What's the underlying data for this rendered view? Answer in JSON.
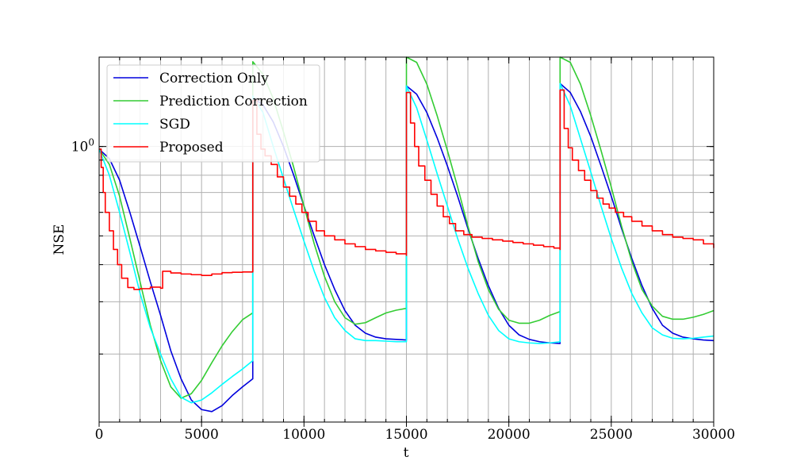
{
  "chart_data": {
    "type": "line",
    "title": "",
    "xlabel": "t",
    "ylabel": "NSE",
    "xlim": [
      0,
      30000
    ],
    "ylim": [
      0.118,
      2.0
    ],
    "yscale": "log",
    "grid": true,
    "legend_position": "top-left",
    "x_ticks": [
      0,
      5000,
      10000,
      15000,
      20000,
      25000,
      30000
    ],
    "x_tick_labels": [
      "0",
      "5000",
      "10000",
      "15000",
      "20000",
      "25000",
      "30000"
    ],
    "y_major_ticks": [
      1.0
    ],
    "y_major_tick_labels": [
      "10^0"
    ],
    "y_minor_ticks": [
      0.2,
      0.3,
      0.4,
      0.5,
      0.6,
      0.7,
      0.8,
      0.9
    ],
    "series": [
      {
        "name": "Correction Only",
        "color": "#0000dd",
        "x": [
          0,
          500,
          1000,
          1500,
          2000,
          2500,
          3000,
          3500,
          4000,
          4500,
          5000,
          5500,
          6000,
          6500,
          7000,
          7500,
          7501,
          8000,
          8500,
          9000,
          9500,
          10000,
          10500,
          11000,
          11500,
          12000,
          12500,
          13000,
          13500,
          14000,
          14500,
          15000,
          15001,
          15500,
          16000,
          16500,
          17000,
          17500,
          18000,
          18500,
          19000,
          19500,
          20000,
          20500,
          21000,
          21500,
          22000,
          22500,
          22501,
          23000,
          23500,
          24000,
          24500,
          25000,
          25500,
          26000,
          26500,
          27000,
          27500,
          28000,
          28500,
          29000,
          29500,
          30000
        ],
        "values": [
          0.98,
          0.91,
          0.77,
          0.6,
          0.46,
          0.35,
          0.27,
          0.205,
          0.165,
          0.14,
          0.13,
          0.128,
          0.134,
          0.145,
          0.155,
          0.165,
          1.46,
          1.38,
          1.21,
          1.0,
          0.8,
          0.63,
          0.5,
          0.4,
          0.33,
          0.28,
          0.25,
          0.235,
          0.228,
          0.225,
          0.224,
          0.223,
          1.6,
          1.5,
          1.3,
          1.07,
          0.86,
          0.68,
          0.53,
          0.42,
          0.34,
          0.285,
          0.25,
          0.232,
          0.224,
          0.22,
          0.218,
          0.217,
          1.63,
          1.52,
          1.31,
          1.08,
          0.86,
          0.68,
          0.53,
          0.42,
          0.34,
          0.285,
          0.25,
          0.235,
          0.228,
          0.225,
          0.223,
          0.222
        ]
      },
      {
        "name": "Prediction Correction",
        "color": "#33cc33",
        "x": [
          0,
          500,
          1000,
          1500,
          2000,
          2500,
          3000,
          3500,
          4000,
          4500,
          5000,
          5500,
          6000,
          6500,
          7000,
          7500,
          7501,
          8000,
          8500,
          9000,
          9500,
          10000,
          10500,
          11000,
          11500,
          12000,
          12500,
          13000,
          13500,
          14000,
          14500,
          15000,
          15001,
          15500,
          16000,
          16500,
          17000,
          17500,
          18000,
          18500,
          19000,
          19500,
          20000,
          20500,
          21000,
          21500,
          22000,
          22500,
          22501,
          23000,
          23500,
          24000,
          24500,
          25000,
          25500,
          26000,
          26500,
          27000,
          27500,
          28000,
          28500,
          29000,
          29500,
          30000
        ],
        "values": [
          0.98,
          0.87,
          0.68,
          0.49,
          0.35,
          0.25,
          0.19,
          0.155,
          0.142,
          0.147,
          0.163,
          0.187,
          0.213,
          0.238,
          0.261,
          0.275,
          1.93,
          1.75,
          1.45,
          1.12,
          0.85,
          0.63,
          0.47,
          0.365,
          0.3,
          0.265,
          0.252,
          0.255,
          0.265,
          0.275,
          0.281,
          0.285,
          2.0,
          1.92,
          1.62,
          1.27,
          0.97,
          0.73,
          0.54,
          0.41,
          0.33,
          0.283,
          0.26,
          0.254,
          0.254,
          0.26,
          0.27,
          0.278,
          2.0,
          1.92,
          1.62,
          1.27,
          0.97,
          0.73,
          0.54,
          0.41,
          0.33,
          0.29,
          0.268,
          0.262,
          0.262,
          0.266,
          0.272,
          0.28
        ]
      },
      {
        "name": "SGD",
        "color": "#00ffff",
        "x": [
          0,
          500,
          1000,
          1500,
          2000,
          2500,
          3000,
          3500,
          4000,
          4500,
          5000,
          5500,
          6000,
          6500,
          7000,
          7500,
          7501,
          8000,
          8500,
          9000,
          9500,
          10000,
          10500,
          11000,
          11500,
          12000,
          12500,
          13000,
          13500,
          14000,
          14500,
          15000,
          15001,
          15500,
          16000,
          16500,
          17000,
          17500,
          18000,
          18500,
          19000,
          19500,
          20000,
          20500,
          21000,
          21500,
          22000,
          22500,
          22501,
          23000,
          23500,
          24000,
          24500,
          25000,
          25500,
          26000,
          26500,
          27000,
          27500,
          28000,
          28500,
          29000,
          29500,
          30000
        ],
        "values": [
          0.98,
          0.8,
          0.6,
          0.44,
          0.32,
          0.245,
          0.2,
          0.165,
          0.143,
          0.137,
          0.14,
          0.148,
          0.158,
          0.168,
          0.178,
          0.19,
          1.48,
          1.3,
          1.0,
          0.78,
          0.61,
          0.48,
          0.38,
          0.31,
          0.265,
          0.24,
          0.225,
          0.222,
          0.222,
          0.221,
          0.22,
          0.22,
          1.6,
          1.35,
          1.05,
          0.81,
          0.63,
          0.49,
          0.39,
          0.32,
          0.27,
          0.24,
          0.225,
          0.22,
          0.218,
          0.217,
          0.218,
          0.22,
          1.63,
          1.37,
          1.06,
          0.82,
          0.63,
          0.49,
          0.39,
          0.32,
          0.275,
          0.245,
          0.232,
          0.226,
          0.225,
          0.226,
          0.228,
          0.23
        ]
      },
      {
        "name": "Proposed",
        "color": "#ff0000",
        "step": true,
        "x": [
          0,
          100,
          200,
          300,
          500,
          700,
          900,
          1100,
          1400,
          1700,
          2000,
          2500,
          3000,
          3100,
          3500,
          4000,
          4500,
          5000,
          5500,
          6000,
          6500,
          7000,
          7500,
          7501,
          7700,
          7900,
          8100,
          8400,
          8700,
          9000,
          9300,
          9600,
          9900,
          10200,
          10600,
          11000,
          11500,
          12000,
          12500,
          13000,
          13500,
          14000,
          14500,
          15000,
          15001,
          15200,
          15400,
          15600,
          15900,
          16200,
          16500,
          16800,
          17100,
          17400,
          17800,
          18200,
          18700,
          19200,
          19700,
          20200,
          20700,
          21200,
          21700,
          22200,
          22500,
          22501,
          22700,
          22900,
          23100,
          23400,
          23700,
          24000,
          24300,
          24600,
          24900,
          25200,
          25600,
          26000,
          26500,
          27000,
          27500,
          28000,
          28500,
          29000,
          29500,
          30000
        ],
        "values": [
          0.98,
          0.85,
          0.7,
          0.6,
          0.52,
          0.45,
          0.4,
          0.36,
          0.335,
          0.33,
          0.332,
          0.336,
          0.333,
          0.38,
          0.375,
          0.372,
          0.37,
          0.368,
          0.372,
          0.376,
          0.377,
          0.378,
          0.38,
          1.43,
          1.1,
          0.98,
          0.93,
          0.87,
          0.79,
          0.73,
          0.68,
          0.64,
          0.6,
          0.56,
          0.52,
          0.5,
          0.485,
          0.47,
          0.46,
          0.45,
          0.445,
          0.44,
          0.435,
          0.43,
          1.52,
          1.2,
          1.0,
          0.86,
          0.77,
          0.69,
          0.63,
          0.58,
          0.55,
          0.52,
          0.505,
          0.495,
          0.49,
          0.485,
          0.48,
          0.475,
          0.47,
          0.465,
          0.46,
          0.455,
          0.45,
          1.55,
          1.15,
          0.99,
          0.9,
          0.83,
          0.77,
          0.71,
          0.67,
          0.64,
          0.62,
          0.6,
          0.58,
          0.56,
          0.54,
          0.52,
          0.505,
          0.495,
          0.49,
          0.485,
          0.47,
          0.455
        ]
      }
    ]
  }
}
